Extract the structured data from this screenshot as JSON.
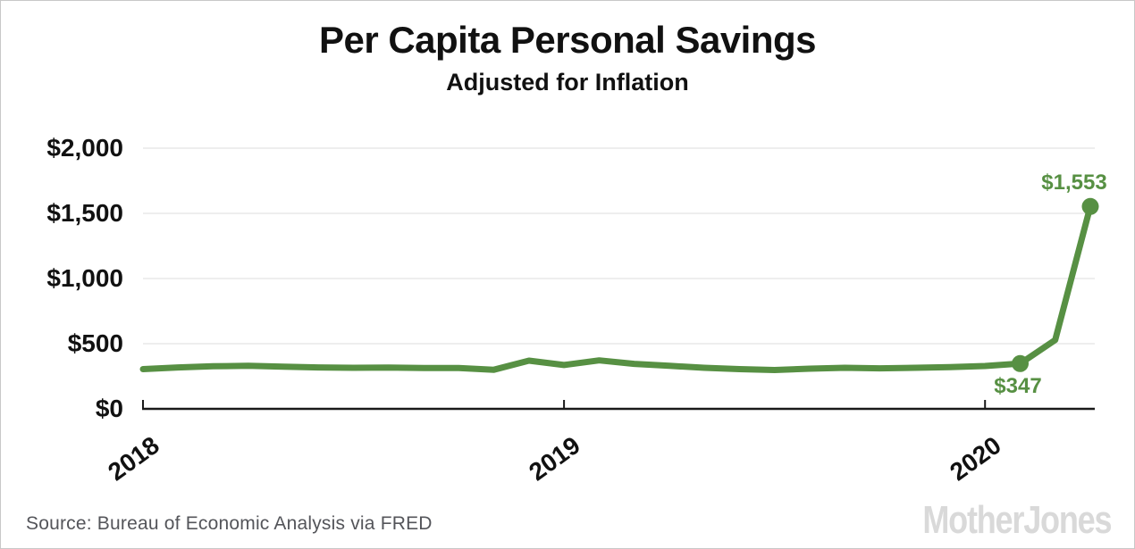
{
  "chart": {
    "title": "Per Capita Personal Savings",
    "subtitle": "Adjusted for Inflation",
    "source": "Source: Bureau of Economic Analysis via FRED",
    "logo": "MotherJones",
    "colors": {
      "line": "#579043",
      "marker": "#579043",
      "annotation_text": "#579043",
      "grid": "#e4e4e4",
      "axis": "#1a1a1a",
      "text": "#111111",
      "source_text": "#54555a",
      "logo_text": "#d9d9d9",
      "background": "#ffffff",
      "border": "#c8c8c8"
    }
  },
  "chart_data": {
    "type": "line",
    "title": "Per Capita Personal Savings",
    "subtitle": "Adjusted for Inflation",
    "series_name": "Per capita personal savings, inflation-adjusted (USD)",
    "x": [
      "2018-01",
      "2018-02",
      "2018-03",
      "2018-04",
      "2018-05",
      "2018-06",
      "2018-07",
      "2018-08",
      "2018-09",
      "2018-10",
      "2018-11",
      "2018-12",
      "2019-01",
      "2019-02",
      "2019-03",
      "2019-04",
      "2019-05",
      "2019-06",
      "2019-07",
      "2019-08",
      "2019-09",
      "2019-10",
      "2019-11",
      "2019-12",
      "2020-01",
      "2020-02",
      "2020-03",
      "2020-04"
    ],
    "values": [
      305,
      318,
      327,
      330,
      324,
      318,
      315,
      317,
      313,
      314,
      300,
      370,
      336,
      372,
      345,
      330,
      315,
      305,
      298,
      308,
      315,
      311,
      315,
      320,
      329,
      347,
      528,
      1553
    ],
    "ylim": [
      0,
      2000
    ],
    "yticks": [
      {
        "value": 0,
        "label": "$0"
      },
      {
        "value": 500,
        "label": "$500"
      },
      {
        "value": 1000,
        "label": "$1,000"
      },
      {
        "value": 1500,
        "label": "$1,500"
      },
      {
        "value": 2000,
        "label": "$2,000"
      }
    ],
    "xticks": [
      {
        "index": 0,
        "label": "2018"
      },
      {
        "index": 12,
        "label": "2019"
      },
      {
        "index": 24,
        "label": "2020"
      }
    ],
    "annotations": [
      {
        "index": 25,
        "value": 347,
        "label": "$347",
        "position": "below"
      },
      {
        "index": 27,
        "value": 1553,
        "label": "$1,553",
        "position": "above"
      }
    ],
    "grid": true,
    "legend": "none",
    "xlabel": "",
    "ylabel": ""
  }
}
